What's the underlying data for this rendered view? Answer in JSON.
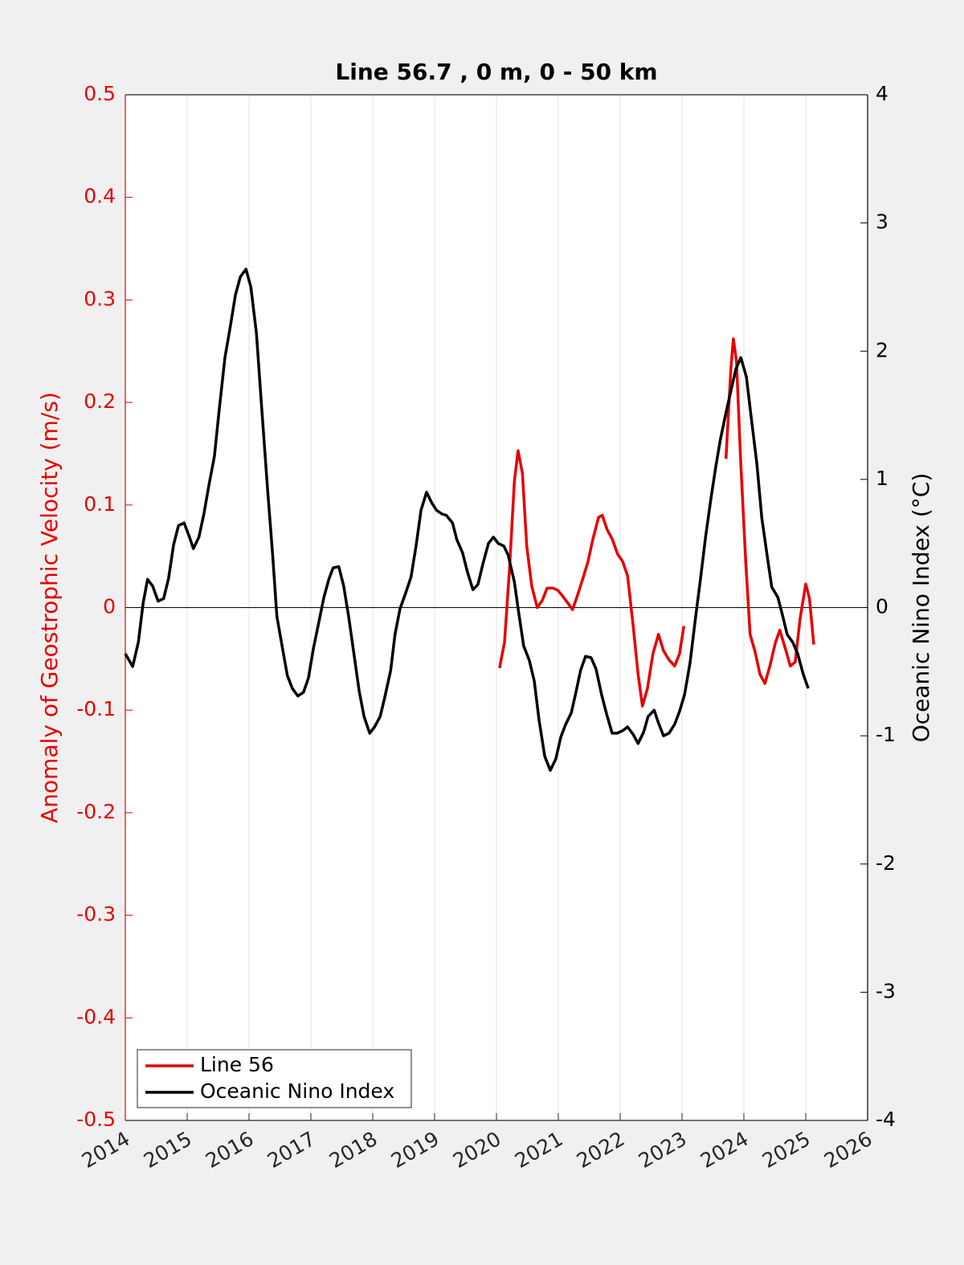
{
  "chart_data": {
    "type": "line",
    "title": "Line 56.7 , 0 m, 0 - 50 km",
    "ylabel": "Anomaly of Geostrophic Velocity (m/s)",
    "y2label": "Oceanic Nino Index (°C)",
    "xlim": [
      2014,
      2026
    ],
    "xticks": [
      2014,
      2015,
      2016,
      2017,
      2018,
      2019,
      2020,
      2021,
      2022,
      2023,
      2024,
      2025,
      2026
    ],
    "ylim": [
      -0.5,
      0.5
    ],
    "yticks": [
      -0.5,
      -0.4,
      -0.3,
      -0.2,
      -0.1,
      0,
      0.1,
      0.2,
      0.3,
      0.4,
      0.5
    ],
    "y2lim": [
      -4,
      4
    ],
    "y2ticks": [
      -4,
      -3,
      -2,
      -1,
      0,
      1,
      2,
      3,
      4
    ],
    "grid": true,
    "legend": "lower left",
    "series": [
      {
        "name": "Line 56",
        "color": "#e60000",
        "axis": "y",
        "x": [
          2020.05,
          2020.13,
          2020.21,
          2020.29,
          2020.35,
          2020.42,
          2020.49,
          2020.57,
          2020.66,
          2020.74,
          2020.82,
          2020.91,
          2020.99,
          2021.06,
          2021.16,
          2021.23,
          2021.31,
          2021.4,
          2021.48,
          2021.56,
          2021.65,
          2021.71,
          2021.79,
          2021.87,
          2021.96,
          2022.04,
          2022.12,
          2022.21,
          2022.29,
          2022.36,
          2022.44,
          2022.53,
          2022.62,
          2022.7,
          2022.79,
          2022.88,
          2022.96,
          2023.03,
          null,
          2023.71,
          2023.79,
          2023.83,
          2023.88,
          2023.95,
          2024.03,
          2024.1,
          2024.18,
          2024.26,
          2024.34,
          2024.42,
          2024.51,
          2024.58,
          2024.68,
          2024.75,
          2024.83,
          2024.91,
          2025.0,
          2025.06,
          2025.13
        ],
        "values": [
          -0.059,
          -0.034,
          0.037,
          0.123,
          0.153,
          0.131,
          0.06,
          0.021,
          0.0,
          0.007,
          0.019,
          0.019,
          0.017,
          0.012,
          0.004,
          -0.002,
          0.012,
          0.029,
          0.045,
          0.067,
          0.088,
          0.09,
          0.076,
          0.067,
          0.052,
          0.045,
          0.031,
          -0.018,
          -0.065,
          -0.096,
          -0.079,
          -0.045,
          -0.026,
          -0.042,
          -0.051,
          -0.057,
          -0.045,
          -0.018,
          null,
          0.145,
          0.233,
          0.262,
          0.24,
          0.139,
          0.045,
          -0.026,
          -0.043,
          -0.065,
          -0.074,
          -0.057,
          -0.034,
          -0.022,
          -0.042,
          -0.057,
          -0.053,
          -0.01,
          0.023,
          0.009,
          -0.036
        ]
      },
      {
        "name": "Oceanic Nino Index",
        "color": "#000000",
        "axis": "y2",
        "x": [
          2014.0,
          2014.12,
          2014.21,
          2014.29,
          2014.36,
          2014.44,
          2014.53,
          2014.62,
          2014.7,
          2014.78,
          2014.86,
          2014.95,
          2015.03,
          2015.1,
          2015.19,
          2015.27,
          2015.35,
          2015.44,
          2015.52,
          2015.61,
          2015.69,
          2015.78,
          2015.86,
          2015.95,
          2016.03,
          2016.12,
          2016.21,
          2016.3,
          2016.38,
          2016.45,
          2016.55,
          2016.62,
          2016.7,
          2016.79,
          2016.88,
          2016.96,
          2017.04,
          2017.13,
          2017.21,
          2017.29,
          2017.36,
          2017.45,
          2017.53,
          2017.61,
          2017.69,
          2017.78,
          2017.86,
          2017.95,
          2018.03,
          2018.12,
          2018.19,
          2018.29,
          2018.36,
          2018.44,
          2018.53,
          2018.62,
          2018.7,
          2018.78,
          2018.87,
          2018.95,
          2019.03,
          2019.12,
          2019.19,
          2019.29,
          2019.36,
          2019.45,
          2019.53,
          2019.62,
          2019.7,
          2019.78,
          2019.87,
          2019.95,
          2020.03,
          2020.12,
          2020.19,
          2020.29,
          2020.36,
          2020.44,
          2020.53,
          2020.61,
          2020.69,
          2020.78,
          2020.87,
          2020.96,
          2021.04,
          2021.12,
          2021.21,
          2021.29,
          2021.36,
          2021.44,
          2021.53,
          2021.61,
          2021.7,
          2021.78,
          2021.87,
          2021.95,
          2022.04,
          2022.12,
          2022.21,
          2022.29,
          2022.38,
          2022.45,
          2022.55,
          2022.62,
          2022.7,
          2022.79,
          2022.88,
          2022.96,
          2023.04,
          2023.13,
          2023.21,
          2023.3,
          2023.38,
          2023.47,
          2023.55,
          2023.62,
          2023.71,
          2023.79,
          2023.87,
          2023.95,
          2024.04,
          2024.12,
          2024.21,
          2024.29,
          2024.38,
          2024.45,
          2024.55,
          2024.62,
          2024.7,
          2024.79,
          2024.87,
          2024.96,
          2025.04
        ],
        "values": [
          -0.36,
          -0.46,
          -0.27,
          0.04,
          0.22,
          0.17,
          0.05,
          0.07,
          0.23,
          0.49,
          0.64,
          0.66,
          0.56,
          0.46,
          0.55,
          0.73,
          0.95,
          1.18,
          1.55,
          1.95,
          2.17,
          2.44,
          2.58,
          2.64,
          2.5,
          2.14,
          1.52,
          0.92,
          0.42,
          -0.07,
          -0.34,
          -0.53,
          -0.63,
          -0.69,
          -0.66,
          -0.55,
          -0.32,
          -0.11,
          0.08,
          0.22,
          0.31,
          0.32,
          0.17,
          -0.07,
          -0.34,
          -0.65,
          -0.85,
          -0.98,
          -0.93,
          -0.85,
          -0.71,
          -0.49,
          -0.21,
          -0.01,
          0.11,
          0.24,
          0.48,
          0.76,
          0.9,
          0.82,
          0.76,
          0.73,
          0.72,
          0.66,
          0.53,
          0.43,
          0.28,
          0.14,
          0.18,
          0.34,
          0.5,
          0.55,
          0.5,
          0.48,
          0.41,
          0.2,
          -0.04,
          -0.3,
          -0.41,
          -0.57,
          -0.88,
          -1.16,
          -1.27,
          -1.18,
          -1.01,
          -0.91,
          -0.82,
          -0.65,
          -0.49,
          -0.38,
          -0.39,
          -0.48,
          -0.68,
          -0.83,
          -0.98,
          -0.98,
          -0.96,
          -0.93,
          -0.99,
          -1.06,
          -0.97,
          -0.85,
          -0.8,
          -0.9,
          -1.0,
          -0.98,
          -0.91,
          -0.81,
          -0.68,
          -0.43,
          -0.11,
          0.23,
          0.55,
          0.86,
          1.11,
          1.31,
          1.52,
          1.69,
          1.86,
          1.95,
          1.8,
          1.48,
          1.12,
          0.7,
          0.39,
          0.16,
          0.08,
          -0.05,
          -0.21,
          -0.27,
          -0.36,
          -0.52,
          -0.63
        ]
      }
    ]
  }
}
